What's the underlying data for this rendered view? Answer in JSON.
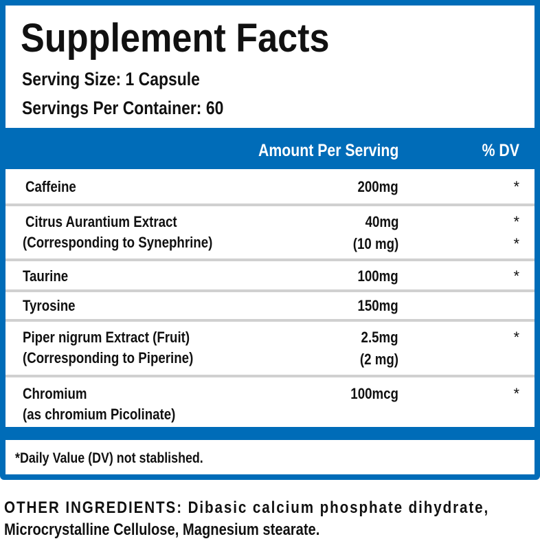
{
  "title": "Supplement Facts",
  "serving_size": "Serving Size: 1 Capsule",
  "servings_per_container": "Servings Per Container: 60",
  "header": {
    "amount": "Amount Per Serving",
    "dv": "% DV"
  },
  "rows": [
    {
      "name": "Caffeine",
      "amount": "200mg",
      "dv": "*"
    },
    {
      "name": "Citrus Aurantium Extract",
      "sub": "(Corresponding to Synephrine)",
      "amount": "40mg",
      "sub_amount": "(10 mg)",
      "dv": "*",
      "sub_dv": "*"
    },
    {
      "name": "Taurine",
      "amount": "100mg",
      "dv": "*"
    },
    {
      "name": "Tyrosine",
      "amount": "150mg"
    },
    {
      "name": "Piper nigrum Extract  (Fruit)",
      "sub": "(Corresponding to Piperine)",
      "amount": "2.5mg",
      "sub_amount": "(2 mg)",
      "dv": "*"
    },
    {
      "name": "Chromium",
      "sub": "(as chromium Picolinate)",
      "amount": "100mcg",
      "dv": "*"
    }
  ],
  "footnote": "*Daily Value (DV) not stablished.",
  "other_ingredients": "OTHER INGREDIENTS: Dibasic calcium phosphate dihydrate,",
  "other_ingredients_2": "Microcrystalline Cellulose, Magnesium stearate.",
  "colors": {
    "accent": "#006cb8"
  }
}
